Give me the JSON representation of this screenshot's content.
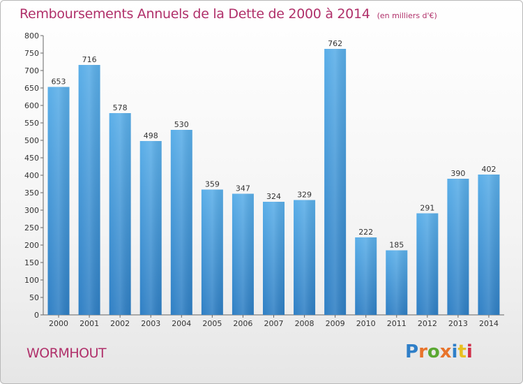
{
  "header": {
    "title": "Remboursements Annuels de la Dette de 2000 à 2014",
    "unit": "(en milliers d'€)"
  },
  "footer": {
    "commune": "WORMHOUT",
    "logo_text": "Proxiti",
    "logo_colors": [
      "#2f7fc8",
      "#e8732b",
      "#5aa832",
      "#e8732b",
      "#2f7fc8",
      "#e8c020",
      "#d0304a"
    ]
  },
  "colors": {
    "bar_top": "#5aaee8",
    "bar_bottom": "#2f7fc4",
    "title": "#b0306a"
  },
  "chart_data": {
    "type": "bar",
    "title": "Remboursements Annuels de la Dette de 2000 à 2014",
    "xlabel": "",
    "ylabel": "",
    "categories": [
      "2000",
      "2001",
      "2002",
      "2003",
      "2004",
      "2005",
      "2006",
      "2007",
      "2008",
      "2009",
      "2010",
      "2011",
      "2012",
      "2013",
      "2014"
    ],
    "values": [
      653,
      716,
      578,
      498,
      530,
      359,
      347,
      324,
      329,
      762,
      222,
      185,
      291,
      390,
      402
    ],
    "ylim": [
      0,
      800
    ],
    "yticks": [
      0,
      50,
      100,
      150,
      200,
      250,
      300,
      350,
      400,
      450,
      500,
      550,
      600,
      650,
      700,
      750,
      800
    ],
    "grid": false,
    "legend": "none"
  }
}
